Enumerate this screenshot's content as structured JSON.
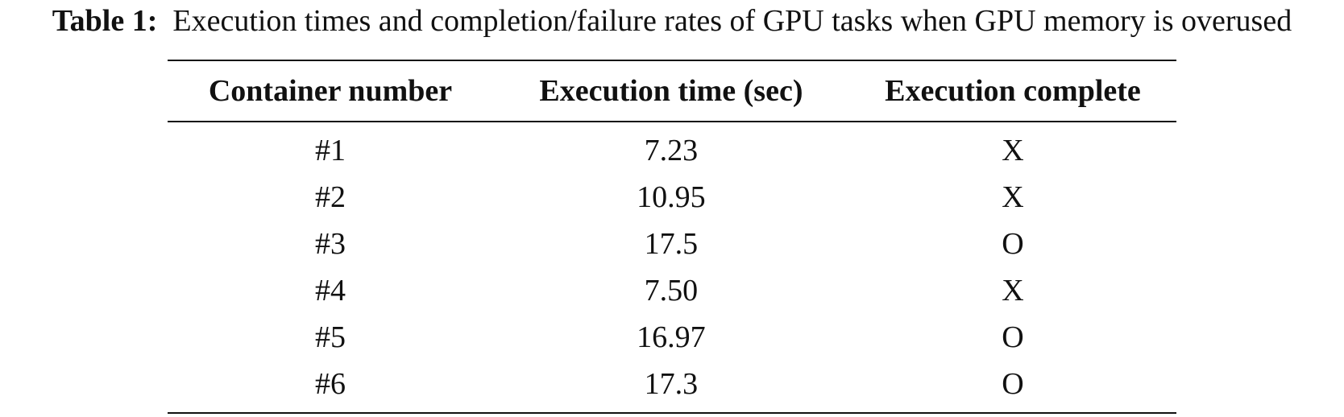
{
  "caption": {
    "label": "Table 1:",
    "text": "Execution times and completion/failure rates of GPU tasks when GPU memory is overused"
  },
  "table": {
    "headers": [
      "Container number",
      "Execution time (sec)",
      "Execution complete"
    ],
    "rows": [
      [
        "#1",
        "7.23",
        "X"
      ],
      [
        "#2",
        "10.95",
        "X"
      ],
      [
        "#3",
        "17.5",
        "O"
      ],
      [
        "#4",
        "7.50",
        "X"
      ],
      [
        "#5",
        "16.97",
        "O"
      ],
      [
        "#6",
        "17.3",
        "O"
      ]
    ]
  }
}
